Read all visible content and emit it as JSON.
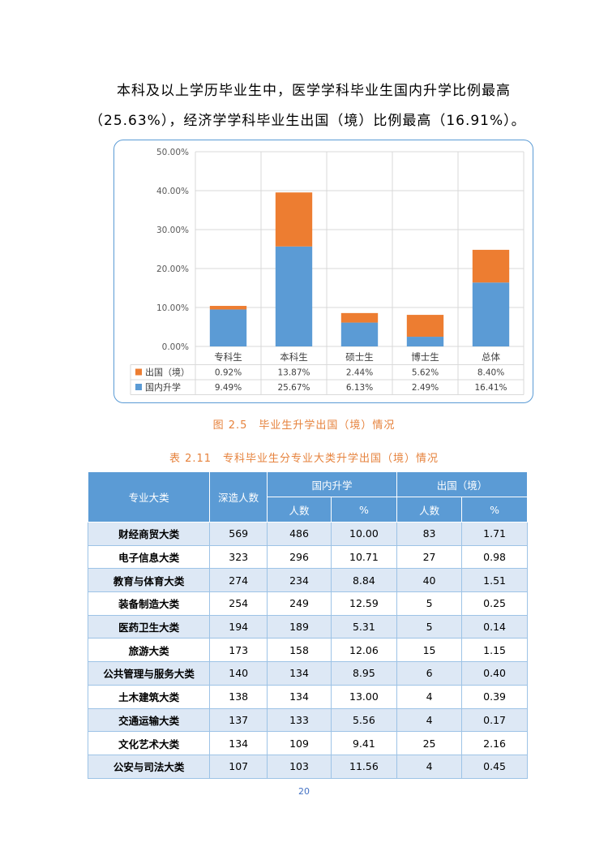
{
  "paragraph": "本科及以上学历毕业生中，医学学科毕业生国内升学比例最高（25.63%），经济学学科毕业生出国（境）比例最高（16.91%）。",
  "figure_caption": "图 2.5　毕业生升学出国（境）情况",
  "chart_data": {
    "type": "bar",
    "stacked": true,
    "categories": [
      "专科生",
      "本科生",
      "硕士生",
      "博士生",
      "总体"
    ],
    "series": [
      {
        "name": "国内升学",
        "color": "#5b9bd5",
        "values": [
          9.49,
          25.67,
          6.13,
          2.49,
          16.41
        ],
        "labels": [
          "9.49%",
          "25.67%",
          "6.13%",
          "2.49%",
          "16.41%"
        ]
      },
      {
        "name": "出国（境）",
        "color": "#ed7d31",
        "values": [
          0.92,
          13.87,
          2.44,
          5.62,
          8.4
        ],
        "labels": [
          "0.92%",
          "13.87%",
          "2.44%",
          "5.62%",
          "8.40%"
        ]
      }
    ],
    "yticks": [
      "0.00%",
      "10.00%",
      "20.00%",
      "30.00%",
      "40.00%",
      "50.00%"
    ],
    "ylim": [
      0,
      50
    ],
    "legend": "data-table"
  },
  "table_caption": "表 2.11　专科毕业生分专业大类升学出国（境）情况",
  "table": {
    "headers": {
      "major": "专业大类",
      "further": "深造人数",
      "domestic": "国内升学",
      "abroad": "出国（境）",
      "count": "人数",
      "pct": "%"
    },
    "rows": [
      {
        "name": "财经商贸大类",
        "total": "569",
        "dom_n": "486",
        "dom_p": "10.00",
        "abr_n": "83",
        "abr_p": "1.71"
      },
      {
        "name": "电子信息大类",
        "total": "323",
        "dom_n": "296",
        "dom_p": "10.71",
        "abr_n": "27",
        "abr_p": "0.98"
      },
      {
        "name": "教育与体育大类",
        "total": "274",
        "dom_n": "234",
        "dom_p": "8.84",
        "abr_n": "40",
        "abr_p": "1.51"
      },
      {
        "name": "装备制造大类",
        "total": "254",
        "dom_n": "249",
        "dom_p": "12.59",
        "abr_n": "5",
        "abr_p": "0.25"
      },
      {
        "name": "医药卫生大类",
        "total": "194",
        "dom_n": "189",
        "dom_p": "5.31",
        "abr_n": "5",
        "abr_p": "0.14"
      },
      {
        "name": "旅游大类",
        "total": "173",
        "dom_n": "158",
        "dom_p": "12.06",
        "abr_n": "15",
        "abr_p": "1.15"
      },
      {
        "name": "公共管理与服务大类",
        "total": "140",
        "dom_n": "134",
        "dom_p": "8.95",
        "abr_n": "6",
        "abr_p": "0.40"
      },
      {
        "name": "土木建筑大类",
        "total": "138",
        "dom_n": "134",
        "dom_p": "13.00",
        "abr_n": "4",
        "abr_p": "0.39"
      },
      {
        "name": "交通运输大类",
        "total": "137",
        "dom_n": "133",
        "dom_p": "5.56",
        "abr_n": "4",
        "abr_p": "0.17"
      },
      {
        "name": "文化艺术大类",
        "total": "134",
        "dom_n": "109",
        "dom_p": "9.41",
        "abr_n": "25",
        "abr_p": "2.16"
      },
      {
        "name": "公安与司法大类",
        "total": "107",
        "dom_n": "103",
        "dom_p": "11.56",
        "abr_n": "4",
        "abr_p": "0.45"
      }
    ]
  },
  "page_number": "20"
}
